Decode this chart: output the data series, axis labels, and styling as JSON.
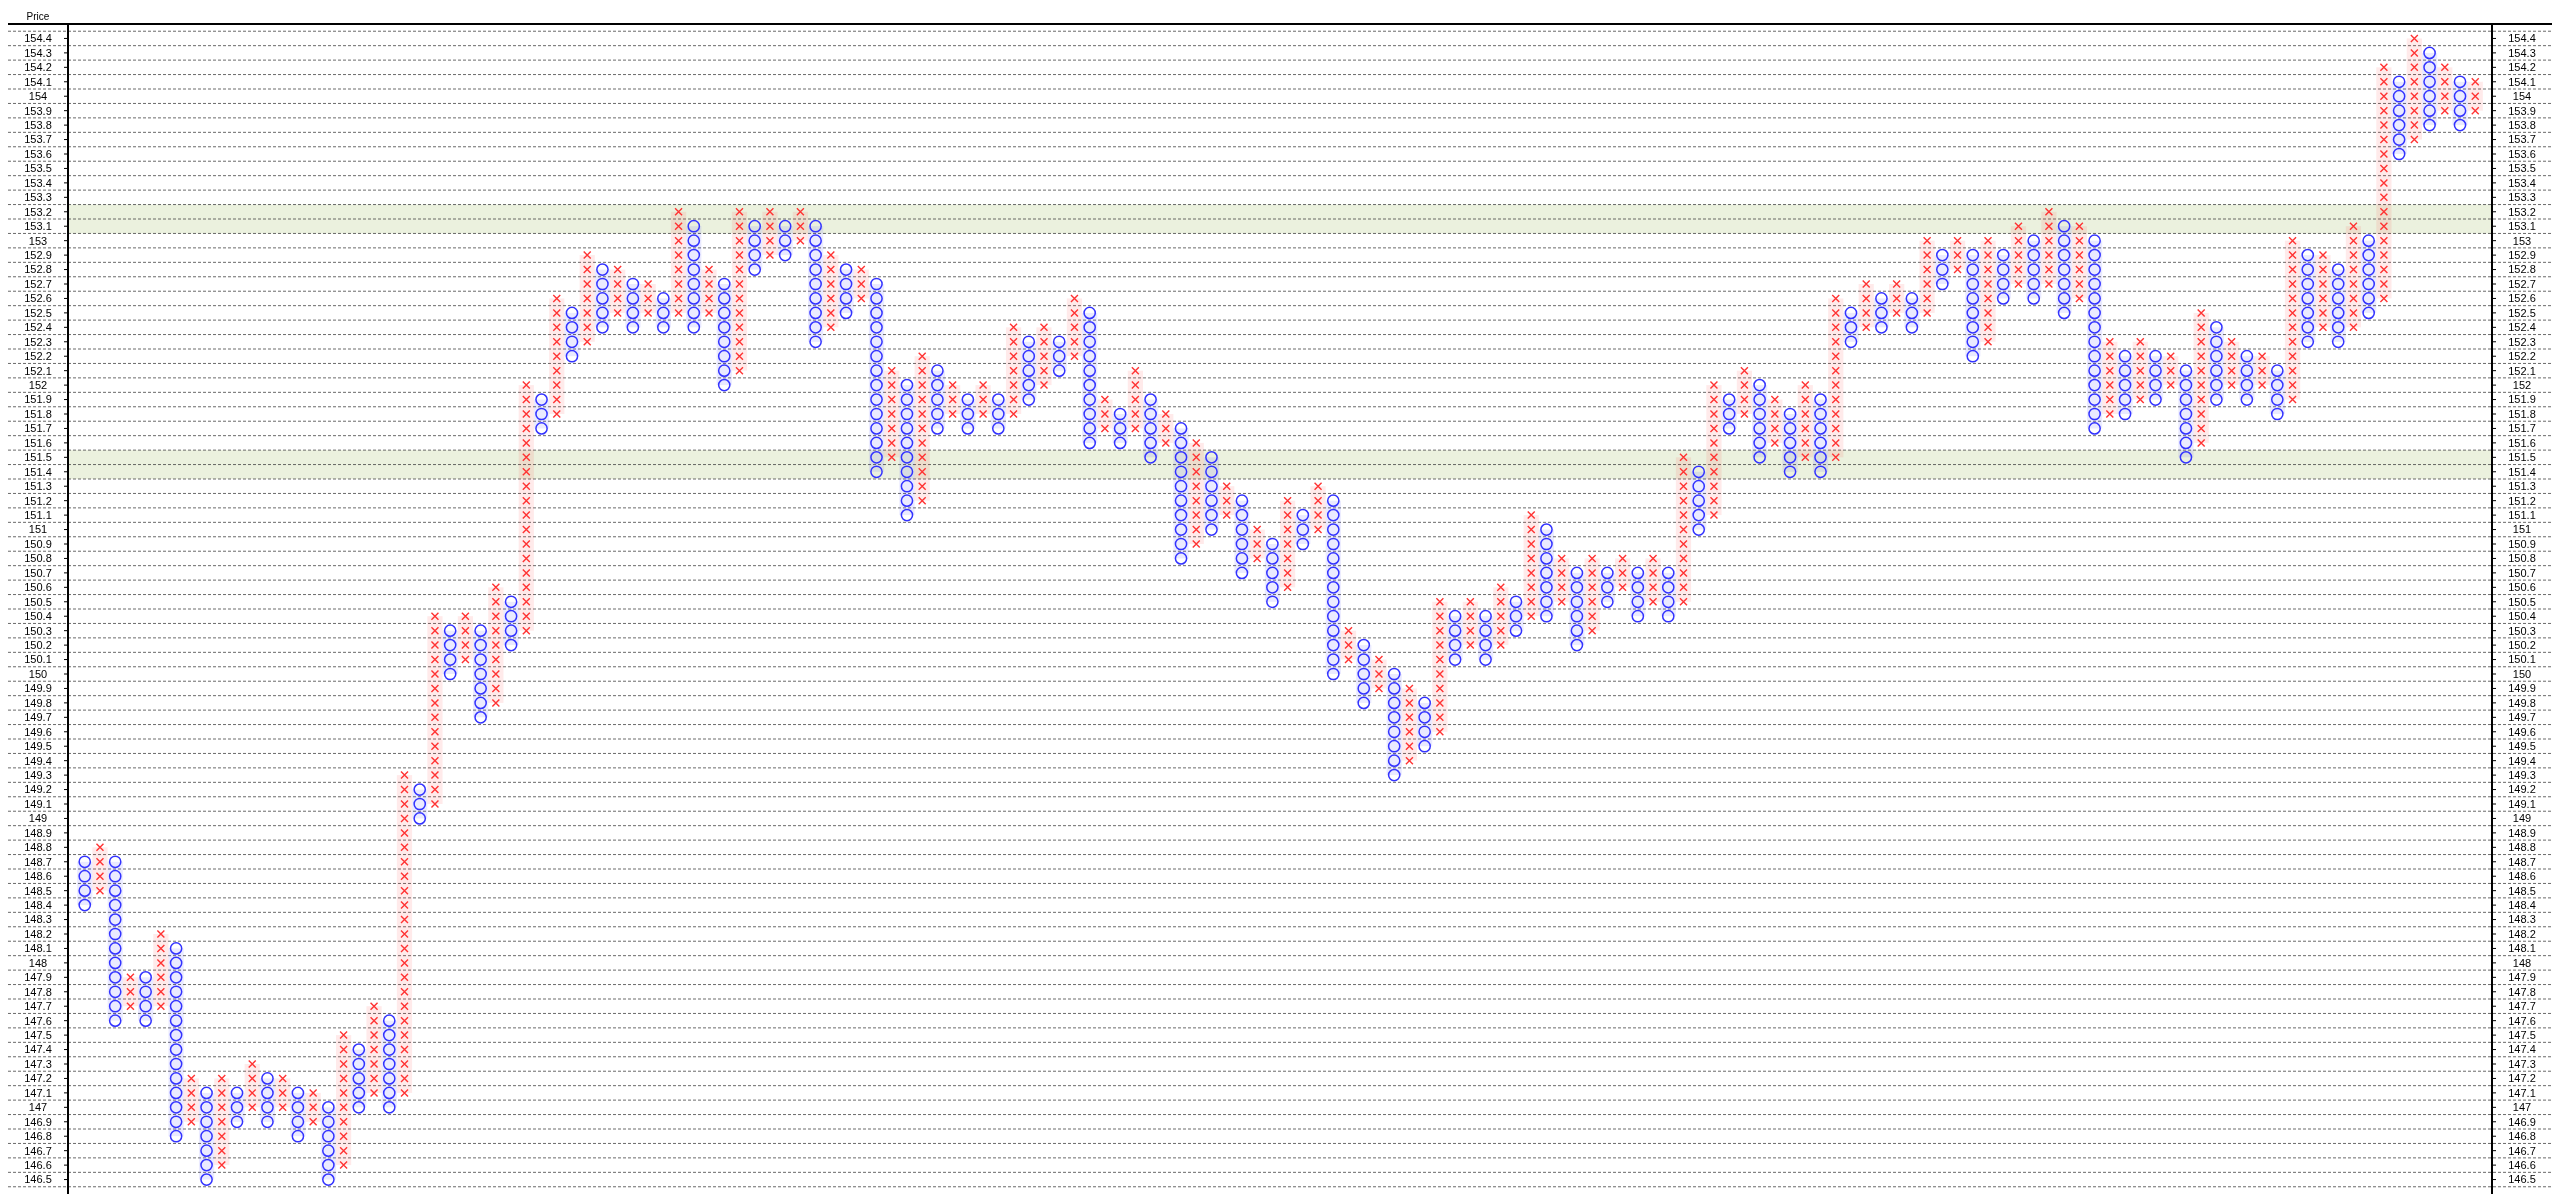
{
  "chart_data": {
    "type": "bar",
    "ylabel": "Price",
    "categories": [
      null,
      null,
      null,
      null,
      null,
      null,
      null,
      null,
      null,
      null,
      null,
      null,
      null,
      null,
      null,
      null,
      null,
      null,
      null,
      null,
      null,
      null,
      null,
      null,
      null,
      null,
      null,
      null,
      null,
      null,
      null,
      null,
      null,
      null,
      null,
      null,
      null,
      null,
      null,
      null,
      null,
      null,
      null,
      null,
      null,
      null,
      null,
      null,
      null,
      null,
      null,
      null,
      null,
      null,
      null,
      null,
      null,
      null,
      null,
      null,
      null,
      null,
      null,
      null,
      null,
      null,
      null,
      null,
      null,
      null,
      null,
      null,
      null,
      null,
      null,
      null,
      null,
      null,
      null,
      null,
      null,
      null,
      null,
      null,
      null,
      null,
      null,
      null,
      null,
      null,
      null,
      null,
      null,
      null,
      null,
      null,
      null,
      null,
      null,
      null,
      null,
      null,
      null,
      null,
      null,
      null,
      null,
      null,
      null,
      null,
      null,
      null,
      null,
      null,
      null,
      null,
      null,
      null,
      null,
      null,
      null,
      null,
      null,
      null,
      null,
      null,
      null,
      null,
      null,
      null,
      null,
      null,
      null,
      null,
      null,
      null,
      null,
      null,
      null,
      null,
      null,
      null,
      null,
      null,
      null,
      null,
      null,
      null,
      null,
      null,
      null,
      null,
      null,
      null,
      null,
      null,
      null,
      null
    ],
    "series": [
      {
        "color": "#3333ff",
        "marker": "circle",
        "base": [
          148.4,
          null,
          147.6,
          null,
          147.6,
          null,
          146.8,
          null,
          146.5,
          null,
          146.9,
          null,
          146.9,
          null,
          146.8,
          null,
          146.5,
          null,
          147.0,
          null,
          147.0,
          null,
          149.0,
          null,
          150.0,
          null,
          149.7,
          null,
          150.2,
          null,
          151.7,
          null,
          152.2,
          null,
          152.4,
          null,
          152.4,
          null,
          152.4,
          null,
          152.4,
          null,
          152.0,
          null,
          152.8,
          null,
          152.9,
          null,
          152.3,
          null,
          152.5,
          null,
          151.4,
          null,
          151.1,
          null,
          151.7,
          null,
          151.7,
          null,
          151.7,
          null,
          151.9,
          null,
          152.1,
          null,
          151.6,
          null,
          151.6,
          null,
          151.5,
          null,
          150.8,
          null,
          151.0,
          null,
          150.7,
          null,
          150.5,
          null,
          150.9,
          null,
          150.0,
          null,
          149.8,
          null,
          149.3,
          null,
          149.5,
          null,
          150.1,
          null,
          150.1,
          null,
          150.3,
          null,
          150.4,
          null,
          150.2,
          null,
          150.5,
          null,
          150.4,
          null,
          150.4,
          null,
          151.0,
          null,
          151.7,
          null,
          151.5,
          null,
          151.4,
          null,
          151.4,
          null,
          152.3,
          null,
          152.4,
          null,
          152.4,
          null,
          152.7,
          null,
          152.2,
          null,
          152.6,
          null,
          152.6,
          null,
          152.5,
          null,
          151.7,
          null,
          151.8,
          null,
          151.9,
          null,
          151.5,
          null,
          151.9,
          null,
          151.9,
          null,
          151.8,
          null,
          152.3,
          null,
          152.3,
          null,
          152.5,
          null,
          153.6,
          null,
          153.8,
          null,
          153.8,
          null
        ],
        "values": [
          0.3,
          null,
          1.1,
          null,
          0.3,
          null,
          1.3,
          null,
          0.6,
          null,
          0.2,
          null,
          0.3,
          null,
          0.3,
          null,
          0.5,
          null,
          0.4,
          null,
          0.6,
          null,
          0.2,
          null,
          0.3,
          null,
          0.6,
          null,
          0.3,
          null,
          0.2,
          null,
          0.3,
          null,
          0.4,
          null,
          0.3,
          null,
          0.2,
          null,
          0.7,
          null,
          0.7,
          null,
          0.3,
          null,
          0.2,
          null,
          0.8,
          null,
          0.3,
          null,
          1.3,
          null,
          0.9,
          null,
          0.4,
          null,
          0.2,
          null,
          0.2,
          null,
          0.4,
          null,
          0.2,
          null,
          0.9,
          null,
          0.2,
          null,
          0.4,
          null,
          0.9,
          null,
          0.5,
          null,
          0.5,
          null,
          0.4,
          null,
          0.2,
          null,
          1.2,
          null,
          0.4,
          null,
          0.7,
          null,
          0.3,
          null,
          0.3,
          null,
          0.3,
          null,
          0.2,
          null,
          0.6,
          null,
          0.5,
          null,
          0.2,
          null,
          0.3,
          null,
          0.3,
          null,
          0.4,
          null,
          0.2,
          null,
          0.5,
          null,
          0.4,
          null,
          0.5,
          null,
          0.2,
          null,
          0.2,
          null,
          0.2,
          null,
          0.2,
          null,
          0.7,
          null,
          0.3,
          null,
          0.4,
          null,
          0.6,
          null,
          1.3,
          null,
          0.4,
          null,
          0.3,
          null,
          0.6,
          null,
          0.5,
          null,
          0.3,
          null,
          0.3,
          null,
          0.6,
          null,
          0.5,
          null,
          0.5,
          null,
          0.5,
          null,
          0.5,
          null,
          0.3,
          null
        ]
      },
      {
        "color": "#ff3333",
        "marker": "cross",
        "base": [
          null,
          148.5,
          null,
          147.7,
          null,
          147.7,
          null,
          146.9,
          null,
          146.6,
          null,
          147.0,
          null,
          147.0,
          null,
          146.9,
          null,
          146.6,
          null,
          147.1,
          null,
          147.1,
          null,
          149.1,
          null,
          150.1,
          null,
          149.8,
          null,
          150.3,
          null,
          151.8,
          null,
          152.3,
          null,
          152.5,
          null,
          152.5,
          null,
          152.5,
          null,
          152.5,
          null,
          152.1,
          null,
          152.9,
          null,
          153.0,
          null,
          152.4,
          null,
          152.6,
          null,
          151.5,
          null,
          151.2,
          null,
          151.8,
          null,
          151.8,
          null,
          151.8,
          null,
          152.0,
          null,
          152.2,
          null,
          151.7,
          null,
          151.7,
          null,
          151.6,
          null,
          150.9,
          null,
          151.1,
          null,
          150.8,
          null,
          150.6,
          null,
          151.0,
          null,
          150.1,
          null,
          149.9,
          null,
          149.4,
          null,
          149.6,
          null,
          150.2,
          null,
          150.2,
          null,
          150.4,
          null,
          150.5,
          null,
          150.3,
          null,
          150.6,
          null,
          150.5,
          null,
          150.5,
          null,
          151.1,
          null,
          151.8,
          null,
          151.6,
          null,
          151.5,
          null,
          151.5,
          null,
          152.4,
          null,
          152.5,
          null,
          152.5,
          null,
          152.8,
          null,
          152.3,
          null,
          152.7,
          null,
          152.7,
          null,
          152.6,
          null,
          151.8,
          null,
          151.9,
          null,
          152.0,
          null,
          151.6,
          null,
          152.0,
          null,
          152.0,
          null,
          151.9,
          null,
          152.4,
          null,
          152.4,
          null,
          152.6,
          null,
          153.7,
          null,
          153.9,
          null,
          153.9
        ],
        "values": [
          null,
          0.3,
          null,
          0.2,
          null,
          0.5,
          null,
          0.3,
          null,
          0.6,
          null,
          0.3,
          null,
          0.2,
          null,
          0.2,
          null,
          0.9,
          null,
          0.6,
          null,
          2.2,
          null,
          1.3,
          null,
          0.3,
          null,
          0.8,
          null,
          1.7,
          null,
          0.8,
          null,
          0.6,
          null,
          0.3,
          null,
          0.2,
          null,
          0.7,
          null,
          0.3,
          null,
          1.1,
          null,
          0.3,
          null,
          0.2,
          null,
          0.5,
          null,
          0.2,
          null,
          0.6,
          null,
          1.0,
          null,
          0.2,
          null,
          0.2,
          null,
          0.6,
          null,
          0.4,
          null,
          0.4,
          null,
          0.2,
          null,
          0.4,
          null,
          0.2,
          null,
          0.7,
          null,
          0.2,
          null,
          0.2,
          null,
          0.6,
          null,
          0.3,
          null,
          0.2,
          null,
          0.2,
          null,
          0.5,
          null,
          0.9,
          null,
          0.3,
          null,
          0.4,
          null,
          0.7,
          null,
          0.3,
          null,
          0.5,
          null,
          0.2,
          null,
          0.3,
          null,
          1.0,
          null,
          0.9,
          null,
          0.3,
          null,
          0.3,
          null,
          0.5,
          null,
          1.1,
          null,
          0.3,
          null,
          0.2,
          null,
          0.5,
          null,
          0.2,
          null,
          0.7,
          null,
          0.4,
          null,
          0.5,
          null,
          0.5,
          null,
          0.5,
          null,
          0.4,
          null,
          0.2,
          null,
          0.9,
          null,
          0.3,
          null,
          0.2,
          null,
          1.1,
          null,
          0.5,
          null,
          0.7,
          null,
          1.6,
          null,
          0.7,
          null,
          0.3,
          null,
          0.2
        ]
      }
    ],
    "ylim": [
      146.4,
      154.5
    ],
    "yticks": [
      146.5,
      146.6,
      146.7,
      146.8,
      146.9,
      147,
      147.1,
      147.2,
      147.3,
      147.4,
      147.5,
      147.6,
      147.7,
      147.8,
      147.9,
      148,
      148.1,
      148.2,
      148.3,
      148.4,
      148.5,
      148.6,
      148.7,
      148.8,
      148.9,
      149,
      149.1,
      149.2,
      149.3,
      149.4,
      149.5,
      149.6,
      149.7,
      149.8,
      149.9,
      150,
      150.1,
      150.2,
      150.3,
      150.4,
      150.5,
      150.6,
      150.7,
      150.8,
      150.9,
      151,
      151.1,
      151.2,
      151.3,
      151.4,
      151.5,
      151.6,
      151.7,
      151.8,
      151.9,
      152,
      152.1,
      152.2,
      152.3,
      152.4,
      152.5,
      152.6,
      152.7,
      152.8,
      152.9,
      153,
      153.1,
      153.2,
      153.3,
      153.4,
      153.5,
      153.6,
      153.7,
      153.8,
      153.9,
      154,
      154.1,
      154.2,
      154.3,
      154.4
    ],
    "y2lim": [
      146.4,
      154.5
    ],
    "y2ticks": [
      146.5,
      146.6,
      146.7,
      146.8,
      146.9,
      147,
      147.1,
      147.2,
      147.3,
      147.4,
      147.5,
      147.6,
      147.7,
      147.8,
      147.9,
      148,
      148.1,
      148.2,
      148.3,
      148.4,
      148.5,
      148.6,
      148.7,
      148.8,
      148.9,
      149,
      149.1,
      149.2,
      149.3,
      149.4,
      149.5,
      149.6,
      149.7,
      149.8,
      149.9,
      150,
      150.1,
      150.2,
      150.3,
      150.4,
      150.5,
      150.6,
      150.7,
      150.8,
      150.9,
      151,
      151.1,
      151.2,
      151.3,
      151.4,
      151.5,
      151.6,
      151.7,
      151.8,
      151.9,
      152,
      152.1,
      152.2,
      152.3,
      152.4,
      152.5,
      152.6,
      152.7,
      152.8,
      152.9,
      153,
      153.1,
      153.2,
      153.3,
      153.4,
      153.5,
      153.6,
      153.7,
      153.8,
      153.9,
      154,
      154.1,
      154.2,
      154.3,
      154.4
    ],
    "bands": [
      {
        "axis": "y",
        "from": 153.05,
        "to": 153.25,
        "color": "#ebf1de"
      },
      {
        "axis": "y",
        "from": 151.35,
        "to": 151.55,
        "color": "#ebf1de"
      }
    ],
    "stacked": true,
    "grid": true
  }
}
